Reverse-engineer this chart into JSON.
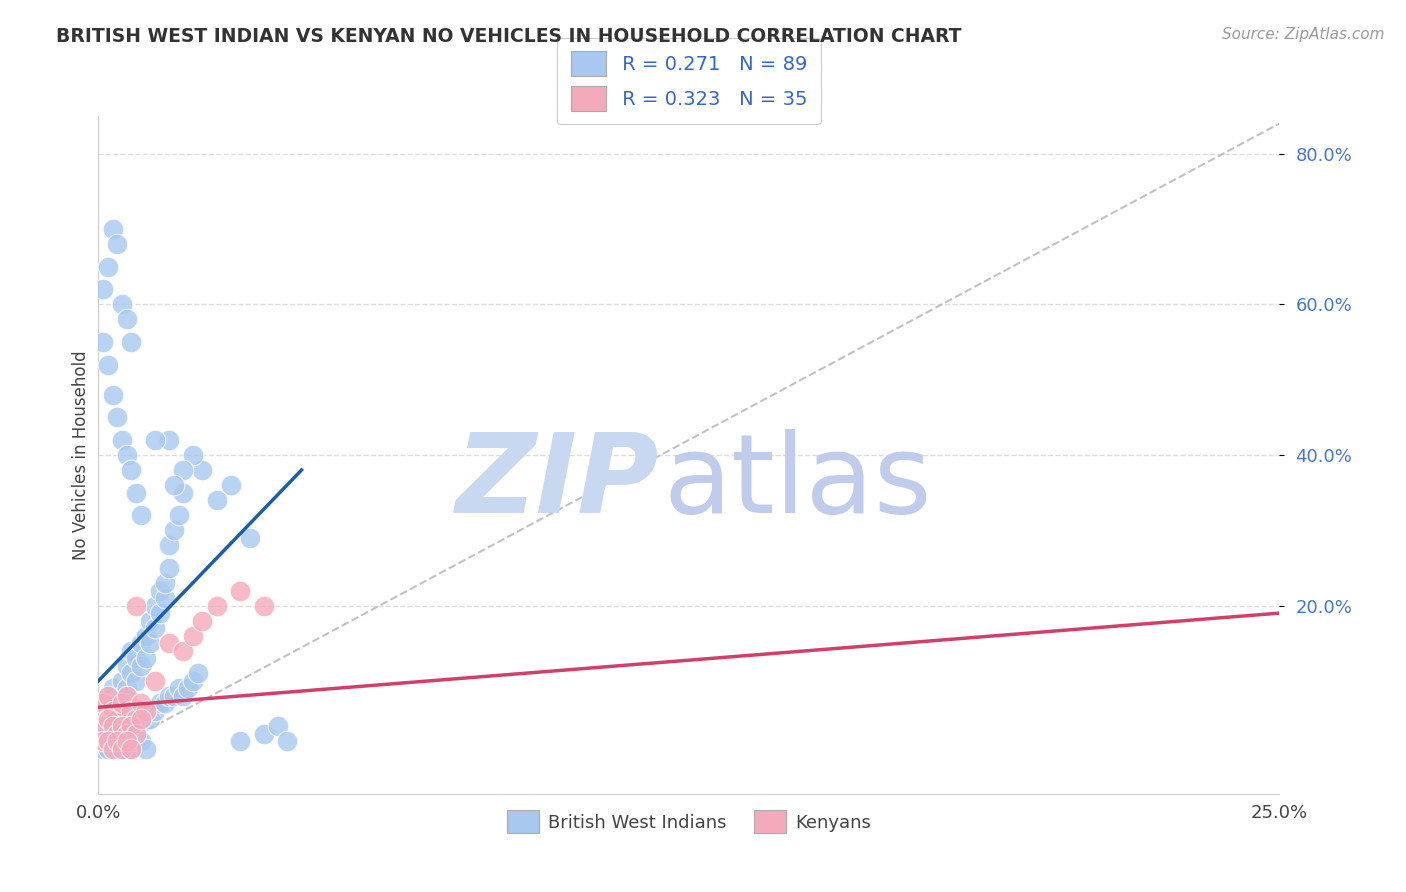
{
  "title": "BRITISH WEST INDIAN VS KENYAN NO VEHICLES IN HOUSEHOLD CORRELATION CHART",
  "source": "Source: ZipAtlas.com",
  "ylabel": "No Vehicles in Household",
  "legend_r1": "R = 0.271",
  "legend_n1": "N = 89",
  "legend_r2": "R = 0.323",
  "legend_n2": "N = 35",
  "legend_label1": "British West Indians",
  "legend_label2": "Kenyans",
  "blue_color": "#A8C8F0",
  "blue_edge_color": "#7AAAD8",
  "pink_color": "#F5AABB",
  "pink_edge_color": "#E07090",
  "blue_line_color": "#1A5FAB",
  "pink_line_color": "#D0406A",
  "diag_color": "#BBBBBB",
  "watermark_zip_color": "#C8D8F0",
  "watermark_atlas_color": "#C0CCEC",
  "xmin": 0.0,
  "xmax": 0.25,
  "ymin": -0.05,
  "ymax": 0.85,
  "ytick_values": [
    0.2,
    0.4,
    0.6,
    0.8
  ],
  "ytick_labels": [
    "20.0%",
    "40.0%",
    "60.0%",
    "80.0%"
  ],
  "xtick_values": [
    0.0,
    0.25
  ],
  "xtick_labels": [
    "0.0%",
    "25.0%"
  ],
  "grid_color": "#DDDDDD",
  "blue_scatter_x": [
    0.002,
    0.003,
    0.003,
    0.004,
    0.004,
    0.005,
    0.005,
    0.006,
    0.006,
    0.007,
    0.007,
    0.008,
    0.008,
    0.009,
    0.009,
    0.01,
    0.01,
    0.011,
    0.011,
    0.012,
    0.012,
    0.013,
    0.013,
    0.014,
    0.014,
    0.015,
    0.015,
    0.016,
    0.017,
    0.018,
    0.002,
    0.003,
    0.004,
    0.005,
    0.006,
    0.007,
    0.008,
    0.009,
    0.01,
    0.011,
    0.012,
    0.013,
    0.014,
    0.015,
    0.016,
    0.017,
    0.018,
    0.019,
    0.02,
    0.021,
    0.001,
    0.002,
    0.003,
    0.004,
    0.005,
    0.006,
    0.007,
    0.008,
    0.009,
    0.01,
    0.001,
    0.002,
    0.003,
    0.004,
    0.005,
    0.006,
    0.007,
    0.008,
    0.009,
    0.001,
    0.002,
    0.003,
    0.004,
    0.005,
    0.006,
    0.007,
    0.03,
    0.035,
    0.038,
    0.04,
    0.022,
    0.025,
    0.028,
    0.032,
    0.02,
    0.015,
    0.018,
    0.016,
    0.012
  ],
  "blue_scatter_y": [
    0.08,
    0.09,
    0.06,
    0.07,
    0.05,
    0.1,
    0.08,
    0.12,
    0.09,
    0.11,
    0.14,
    0.13,
    0.1,
    0.15,
    0.12,
    0.16,
    0.13,
    0.18,
    0.15,
    0.17,
    0.2,
    0.19,
    0.22,
    0.21,
    0.23,
    0.25,
    0.28,
    0.3,
    0.32,
    0.35,
    0.03,
    0.04,
    0.03,
    0.04,
    0.03,
    0.05,
    0.04,
    0.05,
    0.06,
    0.05,
    0.06,
    0.07,
    0.07,
    0.08,
    0.08,
    0.09,
    0.08,
    0.09,
    0.1,
    0.11,
    0.01,
    0.01,
    0.02,
    0.02,
    0.01,
    0.02,
    0.01,
    0.02,
    0.02,
    0.01,
    0.55,
    0.52,
    0.48,
    0.45,
    0.42,
    0.4,
    0.38,
    0.35,
    0.32,
    0.62,
    0.65,
    0.7,
    0.68,
    0.6,
    0.58,
    0.55,
    0.02,
    0.03,
    0.04,
    0.02,
    0.38,
    0.34,
    0.36,
    0.29,
    0.4,
    0.42,
    0.38,
    0.36,
    0.42
  ],
  "pink_scatter_x": [
    0.001,
    0.002,
    0.003,
    0.004,
    0.005,
    0.006,
    0.007,
    0.008,
    0.009,
    0.01,
    0.001,
    0.002,
    0.003,
    0.004,
    0.005,
    0.006,
    0.007,
    0.008,
    0.009,
    0.001,
    0.002,
    0.003,
    0.004,
    0.005,
    0.006,
    0.007,
    0.025,
    0.03,
    0.035,
    0.012,
    0.015,
    0.018,
    0.02,
    0.022,
    0.008
  ],
  "pink_scatter_y": [
    0.07,
    0.08,
    0.06,
    0.05,
    0.07,
    0.08,
    0.06,
    0.05,
    0.07,
    0.06,
    0.04,
    0.05,
    0.04,
    0.03,
    0.04,
    0.03,
    0.04,
    0.03,
    0.05,
    0.02,
    0.02,
    0.01,
    0.02,
    0.01,
    0.02,
    0.01,
    0.2,
    0.22,
    0.2,
    0.1,
    0.15,
    0.14,
    0.16,
    0.18,
    0.2
  ],
  "blue_line_x": [
    0.0,
    0.043
  ],
  "blue_line_y": [
    0.1,
    0.38
  ],
  "pink_line_x": [
    0.0,
    0.25
  ],
  "pink_line_y": [
    0.065,
    0.19
  ],
  "diag_line_x": [
    0.0,
    0.25
  ],
  "diag_line_y": [
    0.0,
    0.84
  ]
}
